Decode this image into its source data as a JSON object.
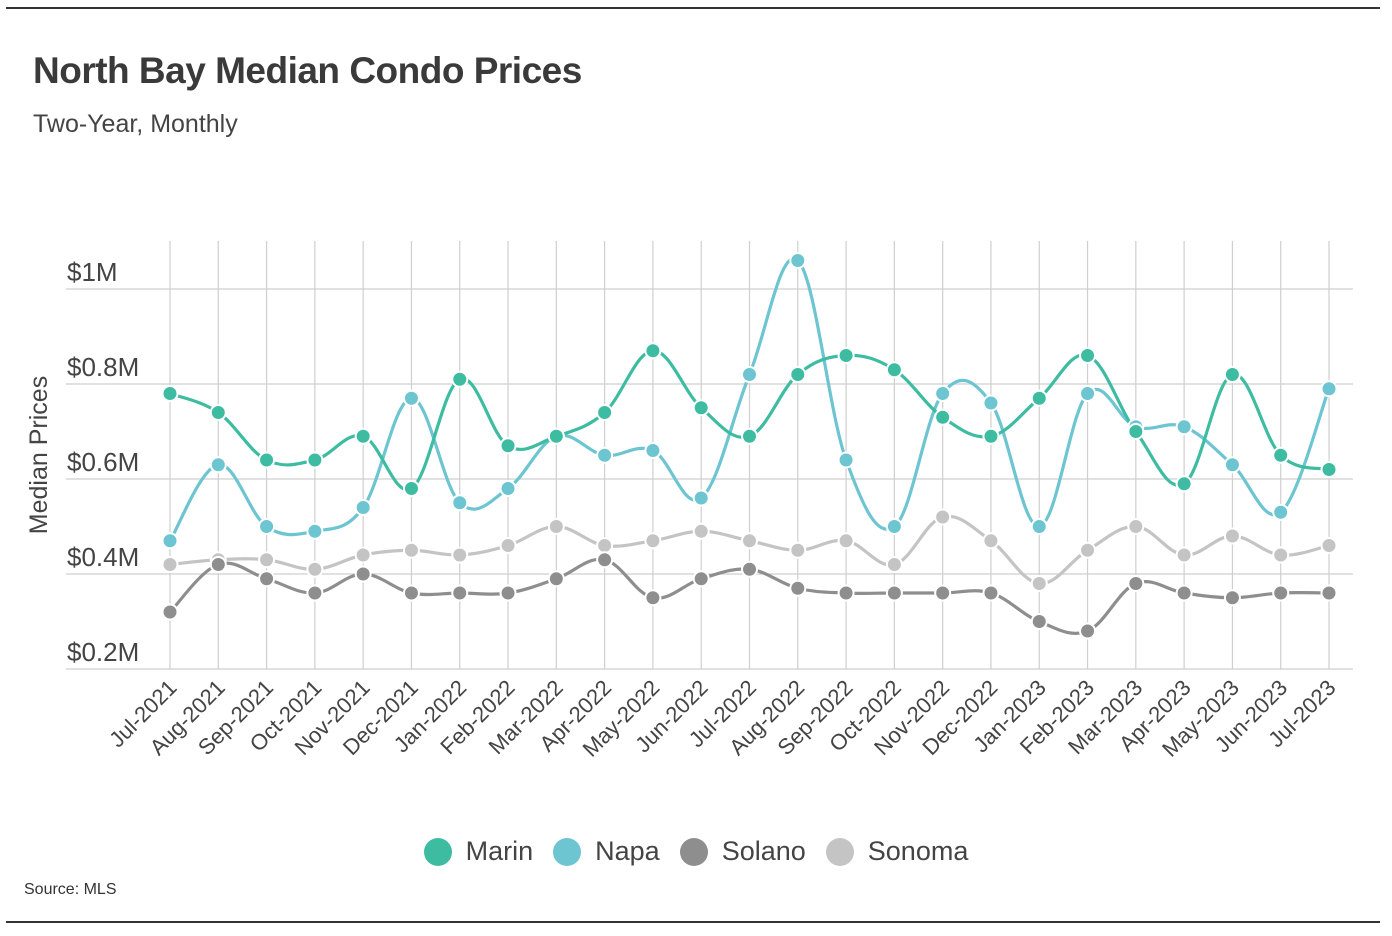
{
  "title": "North Bay Median Condo Prices",
  "subtitle": "Two-Year, Monthly",
  "source": "Source: MLS",
  "chart_data": {
    "type": "line",
    "title": "North Bay Median Condo Prices",
    "subtitle": "Two-Year, Monthly",
    "xlabel": "",
    "ylabel": "Median Prices",
    "y_unit": "millions of dollars",
    "ylim": [
      0.2,
      1.0
    ],
    "yticks": [
      0.2,
      0.4,
      0.6,
      0.8,
      1.0
    ],
    "ytick_labels": [
      "$0.2M",
      "$0.4M",
      "$0.6M",
      "$0.8M",
      "$1M"
    ],
    "grid": true,
    "legend_position": "bottom-center",
    "categories": [
      "Jul-2021",
      "Aug-2021",
      "Sep-2021",
      "Oct-2021",
      "Nov-2021",
      "Dec-2021",
      "Jan-2022",
      "Feb-2022",
      "Mar-2022",
      "Apr-2022",
      "May-2022",
      "Jun-2022",
      "Jul-2022",
      "Aug-2022",
      "Sep-2022",
      "Oct-2022",
      "Nov-2022",
      "Dec-2022",
      "Jan-2023",
      "Feb-2023",
      "Mar-2023",
      "Apr-2023",
      "May-2023",
      "Jun-2023",
      "Jul-2023"
    ],
    "series": [
      {
        "name": "Marin",
        "color": "#3ebca2",
        "values": [
          0.78,
          0.74,
          0.64,
          0.64,
          0.69,
          0.58,
          0.81,
          0.67,
          0.69,
          0.74,
          0.87,
          0.75,
          0.69,
          0.82,
          0.86,
          0.83,
          0.73,
          0.69,
          0.77,
          0.86,
          0.7,
          0.59,
          0.82,
          0.65,
          0.62
        ]
      },
      {
        "name": "Napa",
        "color": "#6cc5d1",
        "values": [
          0.47,
          0.63,
          0.5,
          0.49,
          0.54,
          0.77,
          0.55,
          0.58,
          0.69,
          0.65,
          0.66,
          0.56,
          0.82,
          1.06,
          0.64,
          0.5,
          0.78,
          0.76,
          0.5,
          0.78,
          0.71,
          0.71,
          0.63,
          0.53,
          0.79
        ]
      },
      {
        "name": "Solano",
        "color": "#8e8e8e",
        "values": [
          0.32,
          0.42,
          0.39,
          0.36,
          0.4,
          0.36,
          0.36,
          0.36,
          0.39,
          0.43,
          0.35,
          0.39,
          0.41,
          0.37,
          0.36,
          0.36,
          0.36,
          0.36,
          0.3,
          0.28,
          0.38,
          0.36,
          0.35,
          0.36,
          0.36
        ]
      },
      {
        "name": "Sonoma",
        "color": "#c4c4c4",
        "values": [
          0.42,
          0.43,
          0.43,
          0.41,
          0.44,
          0.45,
          0.44,
          0.46,
          0.5,
          0.46,
          0.47,
          0.49,
          0.47,
          0.45,
          0.47,
          0.42,
          0.52,
          0.47,
          0.38,
          0.45,
          0.5,
          0.44,
          0.48,
          0.44,
          0.46
        ]
      }
    ]
  }
}
